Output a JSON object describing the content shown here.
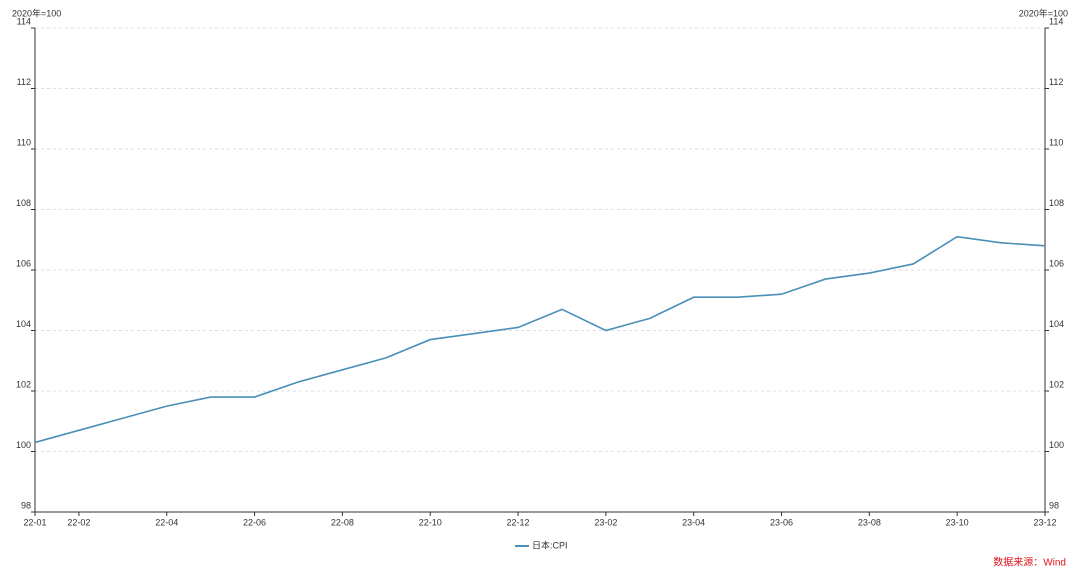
{
  "chart_data": {
    "type": "line",
    "y_label": "2020年=100",
    "y2_label": "2020年=100",
    "source": "数据来源：Wind",
    "categories": [
      "22-01",
      "22-02",
      null,
      "22-04",
      null,
      "22-06",
      null,
      "22-08",
      null,
      "22-10",
      null,
      "22-12",
      null,
      "23-02",
      null,
      "23-04",
      null,
      "23-06",
      null,
      "23-08",
      null,
      "23-10",
      null,
      "23-12"
    ],
    "series": [
      {
        "name": "日本:CPI",
        "color": "#4a8fb8",
        "values": [
          100.3,
          100.7,
          101.1,
          101.5,
          101.8,
          101.8,
          102.3,
          102.7,
          103.1,
          103.7,
          103.9,
          104.1,
          104.7,
          104.0,
          104.4,
          105.1,
          105.1,
          105.2,
          105.7,
          105.9,
          106.2,
          107.1,
          106.9,
          106.8
        ]
      }
    ],
    "ylim": [
      98,
      114
    ],
    "yticks": [
      98,
      100,
      102,
      104,
      106,
      108,
      110,
      112,
      114
    ],
    "y2lim": [
      98,
      114
    ],
    "y2ticks": [
      98,
      100,
      102,
      104,
      106,
      108,
      110,
      112,
      114
    ],
    "grid": true,
    "legend": "bottom"
  }
}
